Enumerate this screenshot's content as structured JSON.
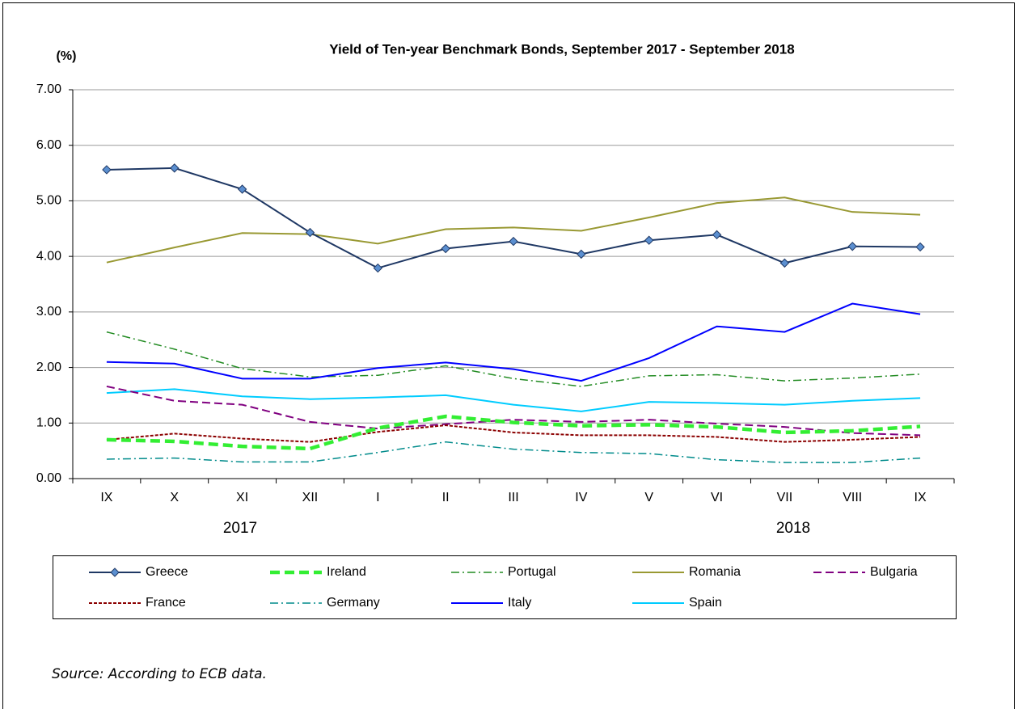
{
  "chart_data": {
    "type": "line",
    "title": "Yield of Ten-year Benchmark Bonds, September 2017 - September 2018",
    "y_label": "(%)",
    "categories": [
      "IX",
      "X",
      "XI",
      "XII",
      "I",
      "II",
      "III",
      "IV",
      "V",
      "VI",
      "VII",
      "VIII",
      "IX"
    ],
    "x_group_labels": [
      "2017",
      "2018"
    ],
    "ylim": [
      0,
      7
    ],
    "yticks": [
      {
        "value": 0,
        "label": "0.00"
      },
      {
        "value": 1,
        "label": "1.00"
      },
      {
        "value": 2,
        "label": "2.00"
      },
      {
        "value": 3,
        "label": "3.00"
      },
      {
        "value": 4,
        "label": "4.00"
      },
      {
        "value": 5,
        "label": "5.00"
      },
      {
        "value": 6,
        "label": "6.00"
      },
      {
        "value": 7,
        "label": "7.00"
      }
    ],
    "grid": true,
    "series": [
      {
        "name": "Greece",
        "color": "#1f3864",
        "dash": "solid",
        "marker": "diamond",
        "values": [
          5.56,
          5.59,
          5.21,
          4.43,
          3.79,
          4.14,
          4.27,
          4.04,
          4.29,
          4.39,
          3.88,
          4.18,
          4.17
        ]
      },
      {
        "name": "Ireland",
        "color": "#33ee33",
        "dash": "dashed-thick",
        "values": [
          0.7,
          0.67,
          0.58,
          0.54,
          0.91,
          1.12,
          1.01,
          0.95,
          0.97,
          0.93,
          0.83,
          0.86,
          0.94
        ]
      },
      {
        "name": "Portugal",
        "color": "#228b22",
        "dash": "dashdot",
        "values": [
          2.64,
          2.33,
          1.98,
          1.83,
          1.86,
          2.03,
          1.8,
          1.66,
          1.85,
          1.87,
          1.76,
          1.81,
          1.88
        ]
      },
      {
        "name": "Romania",
        "color": "#999933",
        "dash": "solid",
        "values": [
          3.89,
          4.16,
          4.42,
          4.4,
          4.23,
          4.49,
          4.52,
          4.46,
          4.7,
          4.96,
          5.06,
          4.8,
          4.75
        ]
      },
      {
        "name": "Bulgaria",
        "color": "#800080",
        "dash": "dashed",
        "values": [
          1.66,
          1.4,
          1.33,
          1.02,
          0.9,
          0.98,
          1.06,
          1.02,
          1.06,
          0.99,
          0.93,
          0.82,
          0.78
        ]
      },
      {
        "name": "France",
        "color": "#8b0000",
        "dash": "dotted",
        "values": [
          0.7,
          0.81,
          0.72,
          0.66,
          0.84,
          0.96,
          0.83,
          0.78,
          0.78,
          0.75,
          0.66,
          0.7,
          0.75
        ]
      },
      {
        "name": "Germany",
        "color": "#008b8b",
        "dash": "dashdot",
        "values": [
          0.35,
          0.37,
          0.3,
          0.3,
          0.47,
          0.66,
          0.53,
          0.47,
          0.45,
          0.34,
          0.29,
          0.29,
          0.37
        ]
      },
      {
        "name": "Italy",
        "color": "#0000ff",
        "dash": "solid",
        "values": [
          2.1,
          2.07,
          1.8,
          1.8,
          1.99,
          2.09,
          1.97,
          1.76,
          2.17,
          2.74,
          2.64,
          3.15,
          2.96
        ]
      },
      {
        "name": "Spain",
        "color": "#00ccff",
        "dash": "solid",
        "values": [
          1.54,
          1.61,
          1.48,
          1.43,
          1.46,
          1.5,
          1.33,
          1.21,
          1.38,
          1.36,
          1.33,
          1.4,
          1.45
        ]
      }
    ]
  },
  "source": "Source: According to ECB data."
}
